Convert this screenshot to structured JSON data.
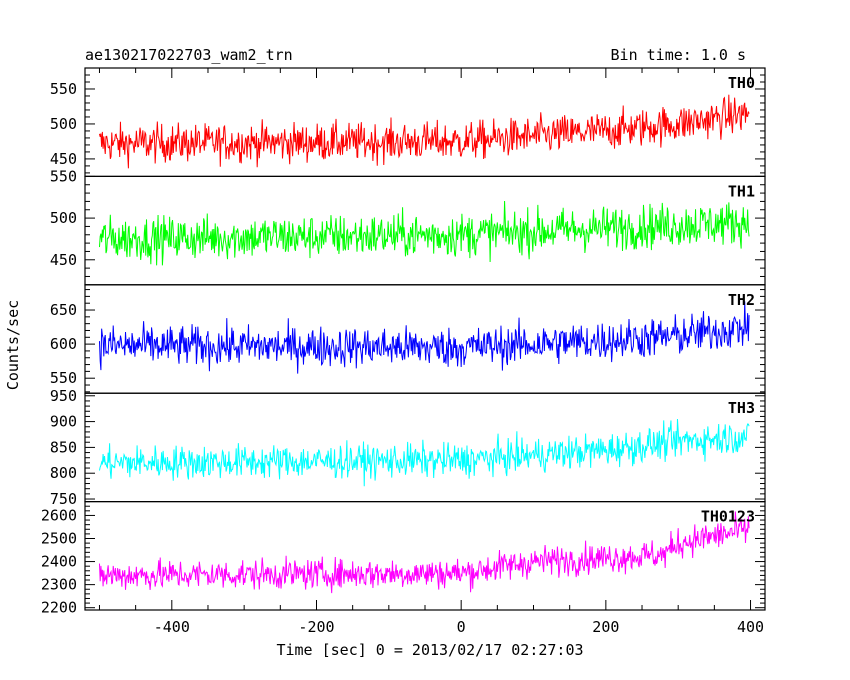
{
  "header": {
    "title": "ae130217022703_wam2_trn",
    "bin_time": "Bin time: 1.0 s"
  },
  "chart_data": {
    "type": "line",
    "title": "ae130217022703_wam2_trn",
    "subtitle": "Bin time: 1.0 s",
    "xlabel": "Time [sec] 0 = 2013/02/17 02:27:03",
    "ylabel": "Counts/sec",
    "xlim": [
      -520,
      420
    ],
    "x_ticks": [
      -400,
      -200,
      0,
      200,
      400
    ],
    "x_step": 1,
    "x_range": [
      -500,
      398
    ],
    "grid": false,
    "legend": "none",
    "panels": [
      {
        "name": "TH0",
        "color": "#ff0000",
        "ylim": [
          425,
          580
        ],
        "y_ticks": [
          450,
          500,
          550
        ],
        "trend": [
          {
            "x": -500,
            "y": 472
          },
          {
            "x": 0,
            "y": 475
          },
          {
            "x": 200,
            "y": 490
          },
          {
            "x": 300,
            "y": 500
          },
          {
            "x": 398,
            "y": 515
          }
        ],
        "noise": 25
      },
      {
        "name": "TH1",
        "color": "#00ff00",
        "ylim": [
          420,
          550
        ],
        "y_ticks": [
          450,
          500,
          550
        ],
        "trend": [
          {
            "x": -500,
            "y": 475
          },
          {
            "x": 0,
            "y": 480
          },
          {
            "x": 200,
            "y": 488
          },
          {
            "x": 398,
            "y": 495
          }
        ],
        "noise": 24
      },
      {
        "name": "TH2",
        "color": "#0000ff",
        "ylim": [
          528,
          687
        ],
        "y_ticks": [
          550,
          600,
          650
        ],
        "trend": [
          {
            "x": -500,
            "y": 598
          },
          {
            "x": 0,
            "y": 595
          },
          {
            "x": 200,
            "y": 605
          },
          {
            "x": 300,
            "y": 612
          },
          {
            "x": 398,
            "y": 625
          }
        ],
        "noise": 27
      },
      {
        "name": "TH3",
        "color": "#00ffff",
        "ylim": [
          745,
          955
        ],
        "y_ticks": [
          750,
          800,
          850,
          900,
          950
        ],
        "trend": [
          {
            "x": -500,
            "y": 820
          },
          {
            "x": 0,
            "y": 825
          },
          {
            "x": 200,
            "y": 845
          },
          {
            "x": 300,
            "y": 862
          },
          {
            "x": 398,
            "y": 872
          }
        ],
        "noise": 30
      },
      {
        "name": "TH0123",
        "color": "#ff00ff",
        "ylim": [
          2190,
          2660
        ],
        "y_ticks": [
          2200,
          2300,
          2400,
          2500,
          2600
        ],
        "trend": [
          {
            "x": -500,
            "y": 2340
          },
          {
            "x": 0,
            "y": 2350
          },
          {
            "x": 100,
            "y": 2400
          },
          {
            "x": 280,
            "y": 2430
          },
          {
            "x": 300,
            "y": 2480
          },
          {
            "x": 398,
            "y": 2540
          }
        ],
        "noise": 60
      }
    ]
  }
}
